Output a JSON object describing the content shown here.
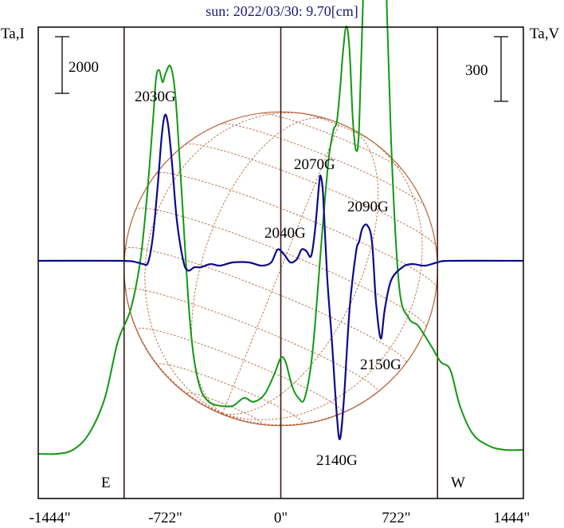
{
  "title": "sun: 2022/03/30: 9.70[cm]",
  "left_axis_label": "Ta,I",
  "right_axis_label": "Ta,V",
  "scale_left_label": "2000",
  "scale_right_label": "300",
  "east_label": "E",
  "west_label": "W",
  "colors": {
    "frame": "#000000",
    "vertical_lines": "#3b1a12",
    "stokes_i": "#119911",
    "stokes_v": "#0a0a8c",
    "disk_grid": "#b8623a",
    "title": "#1a1a7a"
  },
  "chart_data": {
    "type": "line",
    "title": "sun: 2022/03/30: 9.70[cm]",
    "x_unit": "arcsec",
    "xlim": [
      -1517,
      1517
    ],
    "x_ticks": [
      -1444,
      -722,
      0,
      722,
      1444
    ],
    "x_tick_labels": [
      "-1444\"",
      "-722\"",
      "0\"",
      "722\"",
      "1444\""
    ],
    "vertical_markers": [
      -980,
      0,
      980
    ],
    "solar_disk": {
      "center_x": 0,
      "radius": 980,
      "grid": true
    },
    "series": [
      {
        "name": "Ta,I",
        "y_fraction_points": [
          [
            -1517,
            0.04
          ],
          [
            -1400,
            0.04
          ],
          [
            -1300,
            0.05
          ],
          [
            -1200,
            0.09
          ],
          [
            -1100,
            0.18
          ],
          [
            -1020,
            0.32
          ],
          [
            -940,
            0.4
          ],
          [
            -880,
            0.52
          ],
          [
            -840,
            0.67
          ],
          [
            -800,
            0.87
          ],
          [
            -780,
            0.98
          ],
          [
            -760,
            1.0
          ],
          [
            -740,
            0.97
          ],
          [
            -722,
            0.99
          ],
          [
            -690,
            1.01
          ],
          [
            -660,
            0.94
          ],
          [
            -630,
            0.76
          ],
          [
            -600,
            0.56
          ],
          [
            -570,
            0.38
          ],
          [
            -540,
            0.27
          ],
          [
            -500,
            0.2
          ],
          [
            -450,
            0.17
          ],
          [
            -380,
            0.16
          ],
          [
            -300,
            0.16
          ],
          [
            -230,
            0.18
          ],
          [
            -170,
            0.17
          ],
          [
            -100,
            0.19
          ],
          [
            -40,
            0.24
          ],
          [
            0,
            0.28
          ],
          [
            30,
            0.27
          ],
          [
            70,
            0.21
          ],
          [
            110,
            0.18
          ],
          [
            150,
            0.18
          ],
          [
            200,
            0.3
          ],
          [
            260,
            0.6
          ],
          [
            300,
            0.78
          ],
          [
            330,
            0.85
          ],
          [
            350,
            0.87
          ],
          [
            370,
            0.95
          ],
          [
            390,
            1.05
          ],
          [
            410,
            1.11
          ],
          [
            430,
            1.05
          ],
          [
            450,
            0.88
          ],
          [
            470,
            0.8
          ],
          [
            490,
            0.86
          ],
          [
            520,
            1.25
          ],
          [
            560,
            1.78
          ],
          [
            590,
            2.0
          ],
          [
            620,
            1.85
          ],
          [
            650,
            1.35
          ],
          [
            690,
            0.82
          ],
          [
            740,
            0.46
          ],
          [
            800,
            0.38
          ],
          [
            860,
            0.36
          ],
          [
            940,
            0.31
          ],
          [
            1000,
            0.27
          ],
          [
            1060,
            0.25
          ],
          [
            1120,
            0.16
          ],
          [
            1200,
            0.09
          ],
          [
            1300,
            0.06
          ],
          [
            1400,
            0.05
          ],
          [
            1517,
            0.05
          ]
        ]
      },
      {
        "name": "Ta,V",
        "y_fraction_points": [
          [
            -1517,
            0.0
          ],
          [
            -1000,
            0.0
          ],
          [
            -900,
            -0.01
          ],
          [
            -860,
            -0.02
          ],
          [
            -830,
            -0.01
          ],
          [
            -800,
            0.15
          ],
          [
            -770,
            0.46
          ],
          [
            -745,
            0.77
          ],
          [
            -725,
            0.9
          ],
          [
            -705,
            0.84
          ],
          [
            -680,
            0.6
          ],
          [
            -650,
            0.25
          ],
          [
            -610,
            0.0
          ],
          [
            -580,
            -0.06
          ],
          [
            -540,
            -0.04
          ],
          [
            -500,
            -0.04
          ],
          [
            -440,
            -0.02
          ],
          [
            -380,
            -0.03
          ],
          [
            -300,
            -0.01
          ],
          [
            -200,
            -0.01
          ],
          [
            -120,
            -0.03
          ],
          [
            -60,
            -0.01
          ],
          [
            -20,
            0.07
          ],
          [
            20,
            0.04
          ],
          [
            60,
            -0.01
          ],
          [
            100,
            0.01
          ],
          [
            130,
            0.07
          ],
          [
            160,
            0.06
          ],
          [
            190,
            0.03
          ],
          [
            215,
            0.2
          ],
          [
            240,
            0.48
          ],
          [
            250,
            0.52
          ],
          [
            265,
            0.4
          ],
          [
            290,
            -0.1
          ],
          [
            320,
            -0.5
          ],
          [
            350,
            -0.95
          ],
          [
            370,
            -1.1
          ],
          [
            395,
            -0.85
          ],
          [
            430,
            -0.3
          ],
          [
            470,
            0.05
          ],
          [
            490,
            0.12
          ],
          [
            510,
            0.2
          ],
          [
            540,
            0.22
          ],
          [
            570,
            0.12
          ],
          [
            595,
            -0.25
          ],
          [
            625,
            -0.48
          ],
          [
            650,
            -0.3
          ],
          [
            690,
            -0.12
          ],
          [
            760,
            -0.04
          ],
          [
            820,
            -0.02
          ],
          [
            900,
            -0.03
          ],
          [
            980,
            -0.01
          ],
          [
            1060,
            0.0
          ],
          [
            1517,
            0.0
          ]
        ]
      }
    ],
    "annotations": [
      {
        "text": "2030G",
        "x": -722
      },
      {
        "text": "2040G",
        "x": 50
      },
      {
        "text": "2070G",
        "x": 240
      },
      {
        "text": "2090G",
        "x": 510
      },
      {
        "text": "2140G",
        "x": 370
      },
      {
        "text": "2150G",
        "x": 630
      }
    ]
  }
}
